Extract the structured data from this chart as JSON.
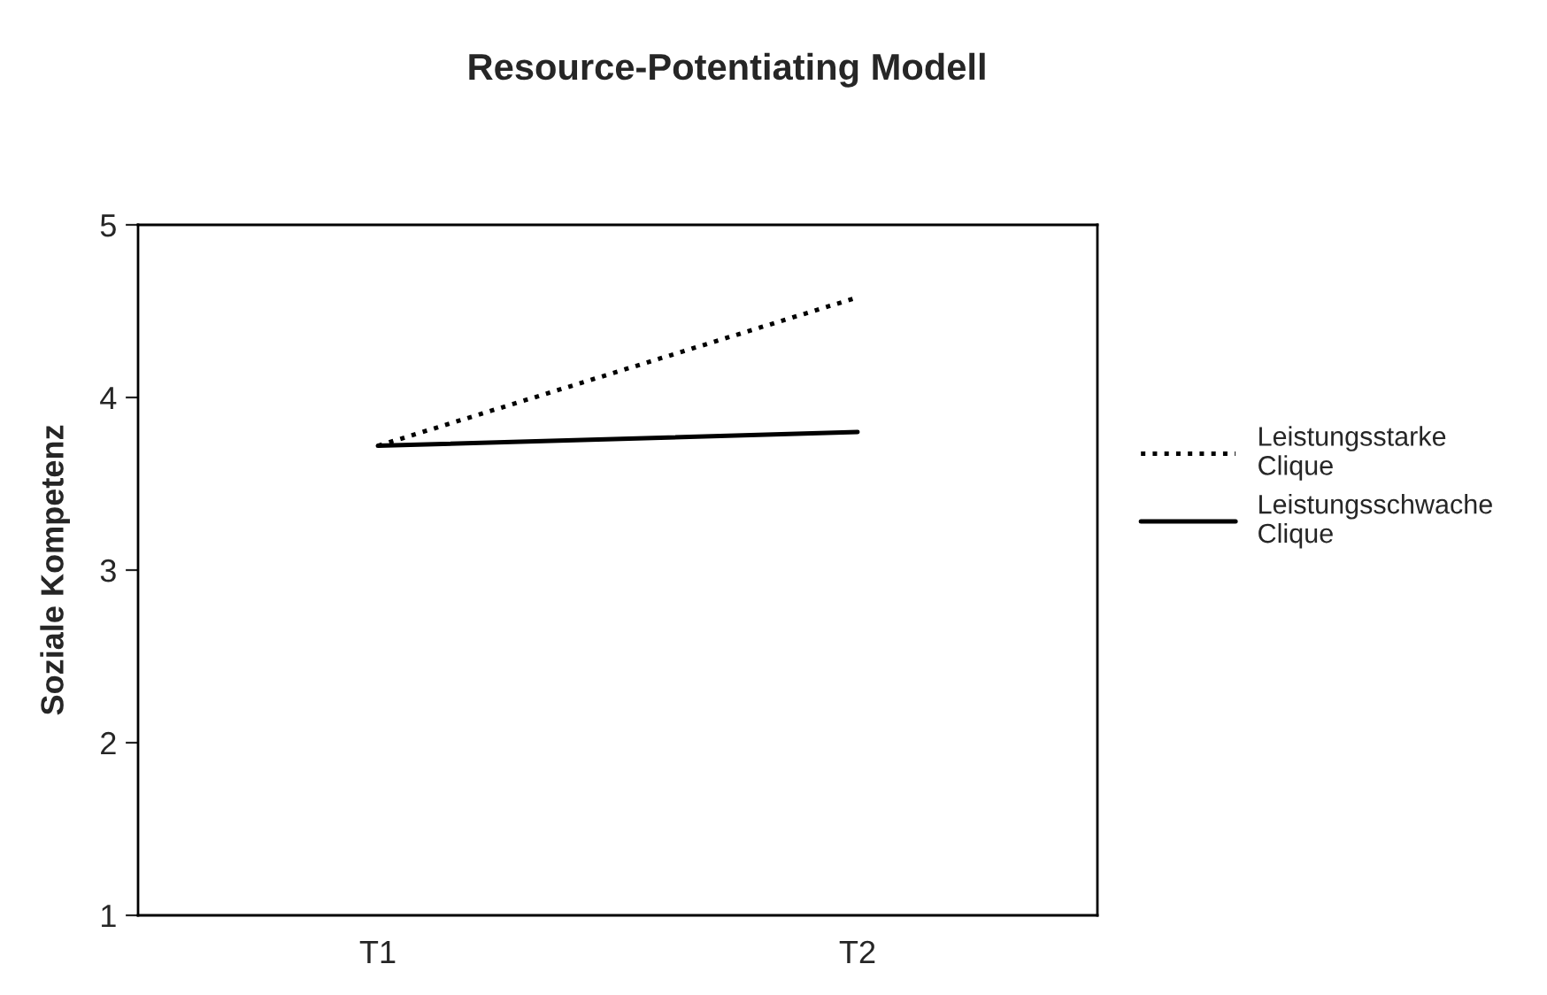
{
  "chart_data": {
    "type": "line",
    "title": "Resource-Potentiating Modell",
    "ylabel": "Soziale Kompetenz",
    "categories": [
      "T1",
      "T2"
    ],
    "series": [
      {
        "name": "Leistungsstarke\nClique",
        "color": "#000000",
        "line_style": "dotted",
        "values": [
          3.72,
          4.58
        ]
      },
      {
        "name": "Leistungsschwache\nClique",
        "color": "#000000",
        "line_style": "solid",
        "values": [
          3.72,
          3.8
        ]
      }
    ],
    "ylim": [
      1,
      5
    ],
    "yticks": [
      1,
      2,
      3,
      4,
      5
    ],
    "grid": false,
    "legend": "right",
    "marker": "none"
  }
}
